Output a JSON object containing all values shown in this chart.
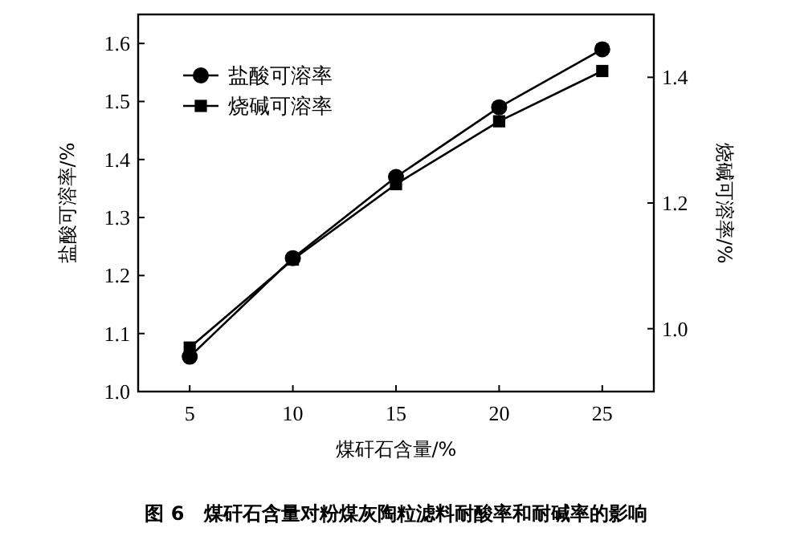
{
  "chart_data": {
    "type": "line",
    "xlabel": "煤矸石含量/%",
    "ylabel": "盐酸可溶率/%",
    "y2label": "烧碱可溶率/%",
    "x": [
      5,
      10,
      15,
      20,
      25
    ],
    "series": [
      {
        "name": "盐酸可溶率",
        "color": "#000000",
        "marker": "circle",
        "values": [
          1.06,
          1.23,
          1.37,
          1.49,
          1.59
        ]
      },
      {
        "name": "烧碱可溶率",
        "color": "#000000",
        "marker": "square",
        "axis": "y2",
        "values": [
          0.97,
          1.11,
          1.23,
          1.33,
          1.41
        ]
      }
    ],
    "xlim": [
      2.5,
      27.5
    ],
    "xticks": [
      5,
      10,
      15,
      20,
      25
    ],
    "ylim": [
      1.0,
      1.65
    ],
    "yticks": [
      {
        "value": 1.0,
        "label": "1.0"
      },
      1.1,
      1.2,
      1.3,
      1.4,
      1.5,
      1.6
    ],
    "y2lim": [
      0.9,
      1.5
    ],
    "y2ticks": [
      {
        "value": 1.0,
        "label": "1.0"
      },
      {
        "value": 1.2,
        "label": "1.2"
      },
      {
        "value": 1.4,
        "label": "1.4"
      }
    ],
    "legend": "top left",
    "grid": false,
    "line_style": "solid",
    "annotations": [
      "图 6　煤矸石含量对粉煤灰陶粒滤料耐酸率和耐碱率的影响"
    ]
  }
}
